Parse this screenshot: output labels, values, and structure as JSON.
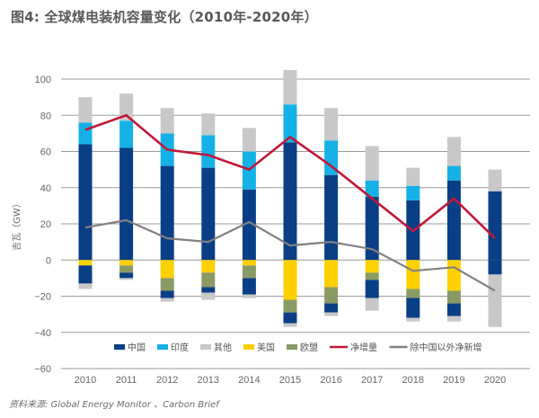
{
  "title": "图4: 全球煤电装机容量变化（2010年-2020年）",
  "source": "资料来源: Global Energy Monitor 、Carbon Brief",
  "chart_data": {
    "type": "bar",
    "stacked": true,
    "title": "图4: 全球煤电装机容量变化（2010年-2020年）",
    "xlabel": "",
    "ylabel": "吉瓦（GW）",
    "ylim": [
      -60,
      100
    ],
    "yticks": [
      100,
      80,
      60,
      40,
      20,
      0,
      -20,
      -40,
      -60
    ],
    "grid": true,
    "legend_position": "bottom",
    "categories": [
      "2010",
      "2011",
      "2012",
      "2013",
      "2014",
      "2015",
      "2016",
      "2017",
      "2018",
      "2019",
      "2020"
    ],
    "positive_series": [
      {
        "name": "中国",
        "color": "#0a3f85",
        "values": [
          64,
          62,
          52,
          51,
          39,
          65,
          47,
          35,
          33,
          44,
          38
        ]
      },
      {
        "name": "印度",
        "color": "#15b1e6",
        "values": [
          12,
          15,
          18,
          18,
          21,
          21,
          19,
          9,
          8,
          8,
          0
        ]
      },
      {
        "name": "其他",
        "color": "#c8c8c8",
        "values": [
          14,
          15,
          14,
          12,
          13,
          19,
          18,
          19,
          10,
          16,
          12
        ]
      }
    ],
    "negative_series": [
      {
        "name": "美国",
        "color": "#fdd000",
        "values": [
          -3,
          -3,
          -10,
          -7,
          -3,
          -22,
          -15,
          -7,
          -16,
          -17,
          0
        ]
      },
      {
        "name": "欧盟",
        "color": "#8a9a64",
        "values": [
          0,
          -4,
          -7,
          -8,
          -7,
          -7,
          -9,
          -4,
          -5,
          -7,
          0
        ]
      },
      {
        "name": "中国",
        "color": "#0a3f85",
        "values": [
          -10,
          -3,
          -4,
          -3,
          -9,
          -6,
          -5,
          -10,
          -11,
          -7,
          -8
        ]
      },
      {
        "name": "其他",
        "color": "#c8c8c8",
        "values": [
          -3,
          -1,
          -2,
          -4,
          -2,
          -2,
          -2,
          -7,
          -2,
          -3,
          -29
        ]
      }
    ],
    "lines": [
      {
        "name": "净增量",
        "color": "#c0183a",
        "values": [
          72,
          80,
          61,
          58,
          50,
          68,
          52,
          34,
          16,
          34,
          12
        ]
      },
      {
        "name": "除中国以外净新增",
        "color": "#808080",
        "values": [
          18,
          22,
          12,
          10,
          21,
          8,
          10,
          6,
          -6,
          -4,
          -17
        ]
      }
    ],
    "legend": [
      {
        "name": "中国",
        "kind": "box",
        "color": "#0a3f85"
      },
      {
        "name": "印度",
        "kind": "box",
        "color": "#15b1e6"
      },
      {
        "name": "其他",
        "kind": "box",
        "color": "#c8c8c8"
      },
      {
        "name": "美国",
        "kind": "box",
        "color": "#fdd000"
      },
      {
        "name": "欧盟",
        "kind": "box",
        "color": "#8a9a64"
      },
      {
        "name": "净增量",
        "kind": "line",
        "color": "#c0183a"
      },
      {
        "name": "除中国以外净新增",
        "kind": "line",
        "color": "#808080"
      }
    ]
  }
}
